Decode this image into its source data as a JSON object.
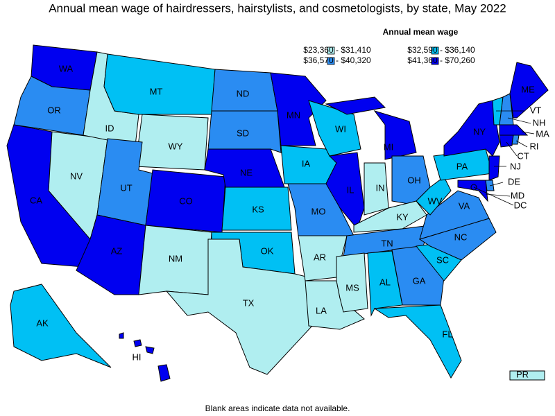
{
  "header": {
    "title": "Annual mean wage of hairdressers, hairstylists, and cosmetologists, by state, May 2022"
  },
  "legend": {
    "title": "Annual mean wage",
    "items": [
      {
        "label": "$23,360 - $31,410",
        "color": "#b0eef0"
      },
      {
        "label": "$32,590 - $36,140",
        "color": "#00c0f4"
      },
      {
        "label": "$36,570 - $40,320",
        "color": "#2a8cf2"
      },
      {
        "label": "$41,360 - $70,260",
        "color": "#0000f0"
      }
    ]
  },
  "states": [
    {
      "label": "WA",
      "class": 3
    },
    {
      "label": "OR",
      "class": 2
    },
    {
      "label": "CA",
      "class": 3
    },
    {
      "label": "NV",
      "class": 0
    },
    {
      "label": "ID",
      "class": 0
    },
    {
      "label": "MT",
      "class": 1
    },
    {
      "label": "WY",
      "class": 0
    },
    {
      "label": "UT",
      "class": 2
    },
    {
      "label": "CO",
      "class": 3
    },
    {
      "label": "AZ",
      "class": 3
    },
    {
      "label": "NM",
      "class": 0
    },
    {
      "label": "ND",
      "class": 2
    },
    {
      "label": "SD",
      "class": 2
    },
    {
      "label": "NE",
      "class": 3
    },
    {
      "label": "KS",
      "class": 1
    },
    {
      "label": "OK",
      "class": 1
    },
    {
      "label": "TX",
      "class": 0
    },
    {
      "label": "MN",
      "class": 3
    },
    {
      "label": "IA",
      "class": 1
    },
    {
      "label": "MO",
      "class": 2
    },
    {
      "label": "AR",
      "class": 0
    },
    {
      "label": "LA",
      "class": 0
    },
    {
      "label": "WI",
      "class": 1
    },
    {
      "label": "IL",
      "class": 3
    },
    {
      "label": "MI",
      "class": 3
    },
    {
      "label": "IN",
      "class": 0
    },
    {
      "label": "OH",
      "class": 2
    },
    {
      "label": "KY",
      "class": 0
    },
    {
      "label": "TN",
      "class": 2
    },
    {
      "label": "MS",
      "class": 0
    },
    {
      "label": "AL",
      "class": 1
    },
    {
      "label": "GA",
      "class": 2
    },
    {
      "label": "FL",
      "class": 1
    },
    {
      "label": "SC",
      "class": 1
    },
    {
      "label": "NC",
      "class": 2
    },
    {
      "label": "VA",
      "class": 2
    },
    {
      "label": "WV",
      "class": 1
    },
    {
      "label": "PA",
      "class": 1
    },
    {
      "label": "NY",
      "class": 3
    },
    {
      "label": "VT",
      "class": 1
    },
    {
      "label": "NH",
      "class": 2
    },
    {
      "label": "ME",
      "class": 3
    },
    {
      "label": "MA",
      "class": 3
    },
    {
      "label": "CT",
      "class": 3
    },
    {
      "label": "RI",
      "class": 2
    },
    {
      "label": "NJ",
      "class": 3
    },
    {
      "label": "DE",
      "class": 2
    },
    {
      "label": "MD",
      "class": 3
    },
    {
      "label": "DC",
      "class": 3
    },
    {
      "label": "AK",
      "class": 1
    },
    {
      "label": "HI",
      "class": 3
    },
    {
      "label": "PR",
      "class": 0
    }
  ],
  "footnote": "Blank areas indicate data not available."
}
